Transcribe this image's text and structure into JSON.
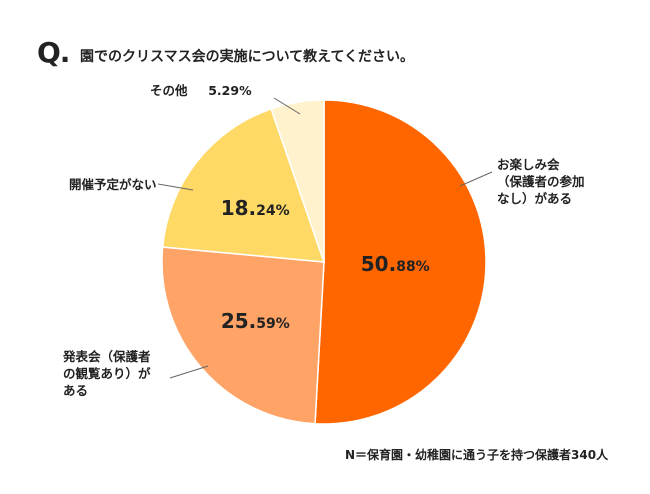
{
  "question": {
    "mark": "Q.",
    "text": "園でのクリスマス会の実施について教えてください。"
  },
  "note": "N＝保育園・幼稚園に通う子を持つ保護者340人",
  "colors": [
    "#ff6600",
    "#ffa366",
    "#ffd966",
    "#fff2cc"
  ],
  "chart_data": {
    "type": "pie",
    "title": "園でのクリスマス会の実施について教えてください。",
    "start": "12 o'clock, clockwise",
    "slices": [
      {
        "label": "お楽しみ会（保護者の参加なし）がある",
        "value": 50.88,
        "value_text": "50.88%",
        "color": "#ff6600"
      },
      {
        "label": "発表会（保護者の観覧あり）がある",
        "value": 25.59,
        "value_text": "25.59%",
        "color": "#ffa366"
      },
      {
        "label": "開催予定がない",
        "value": 18.24,
        "value_text": "18.24%",
        "color": "#ffd966"
      },
      {
        "label": "その他",
        "value": 5.29,
        "value_text": "5.29%",
        "color": "#fff2cc"
      }
    ],
    "legend": "none (callout labels)"
  },
  "labels": {
    "otanoshimi": [
      "お楽しみ会",
      "（保護者の参加",
      "なし）がある"
    ],
    "happyo": [
      "発表会（保護者",
      "の観覧あり）が",
      "ある"
    ],
    "nashi": "開催予定がない",
    "sonota": "その他",
    "sonota_value": "5.29%"
  }
}
